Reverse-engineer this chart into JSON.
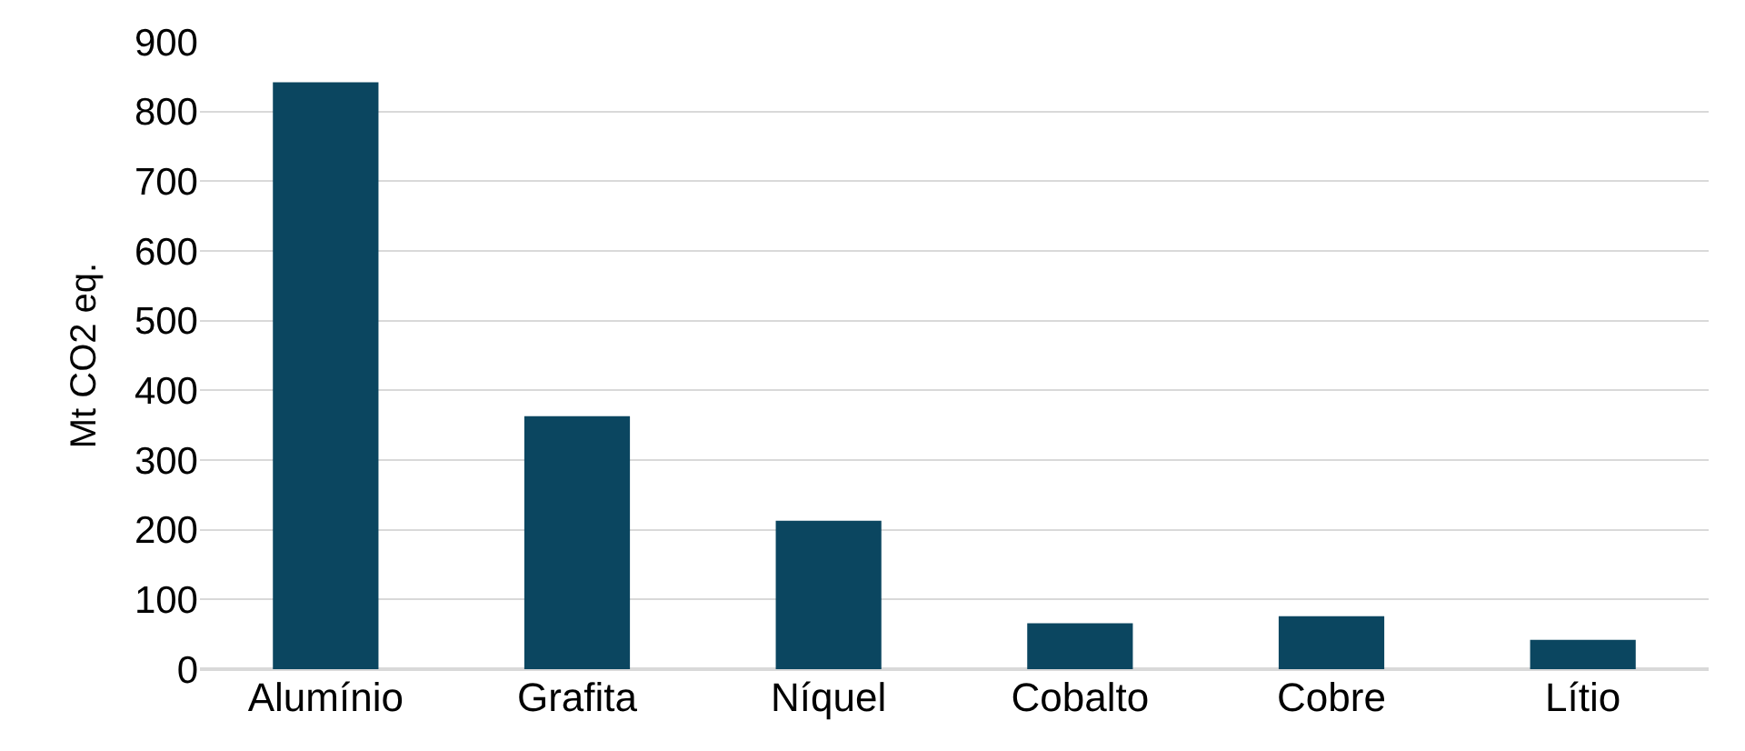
{
  "chart_data": {
    "type": "bar",
    "ylabel": "Mt CO2 eq.",
    "categories": [
      "Alumínio",
      "Grafita",
      "Níquel",
      "Cobalto",
      "Cobre",
      "Lítio"
    ],
    "values": [
      842,
      363,
      213,
      66,
      76,
      42
    ],
    "color": "#0b4660",
    "ylim": [
      0,
      900
    ],
    "yticks": [
      0,
      100,
      200,
      300,
      400,
      500,
      600,
      700,
      800,
      900
    ],
    "grid": "y"
  }
}
